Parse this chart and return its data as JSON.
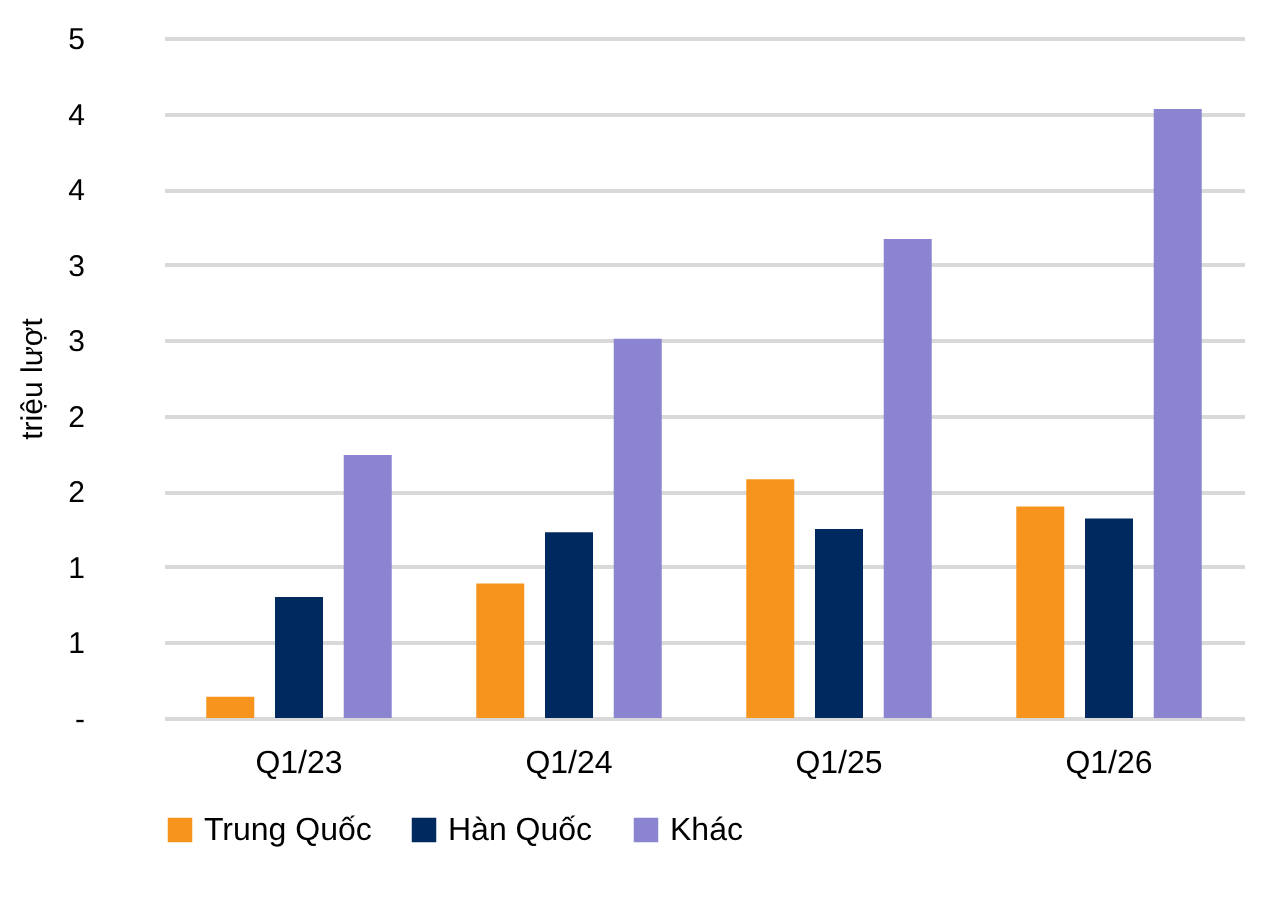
{
  "chart_data": {
    "type": "bar",
    "ylabel": "triệu lượt",
    "categories": [
      "Q1/23",
      "Q1/24",
      "Q1/25",
      "Q1/26"
    ],
    "series": [
      {
        "name": "Trung Quốc",
        "color": "#f7941d",
        "values": [
          0.14,
          0.89,
          1.58,
          1.4
        ]
      },
      {
        "name": "Hàn Quốc",
        "color": "#002960",
        "values": [
          0.8,
          1.23,
          1.25,
          1.32
        ]
      },
      {
        "name": "Khác",
        "color": "#8b84d1",
        "values": [
          1.74,
          2.51,
          3.17,
          4.03
        ]
      }
    ],
    "ylim": [
      0,
      4.5
    ],
    "yticks": [
      {
        "value": 0,
        "label": "-"
      },
      {
        "value": 0.5,
        "label": "1"
      },
      {
        "value": 1,
        "label": "1"
      },
      {
        "value": 1.5,
        "label": "2"
      },
      {
        "value": 2,
        "label": "2"
      },
      {
        "value": 2.5,
        "label": "3"
      },
      {
        "value": 3,
        "label": "3"
      },
      {
        "value": 3.5,
        "label": "4"
      },
      {
        "value": 4,
        "label": "4"
      },
      {
        "value": 4.5,
        "label": "5"
      }
    ],
    "grid": "y",
    "legend": "bottom"
  }
}
